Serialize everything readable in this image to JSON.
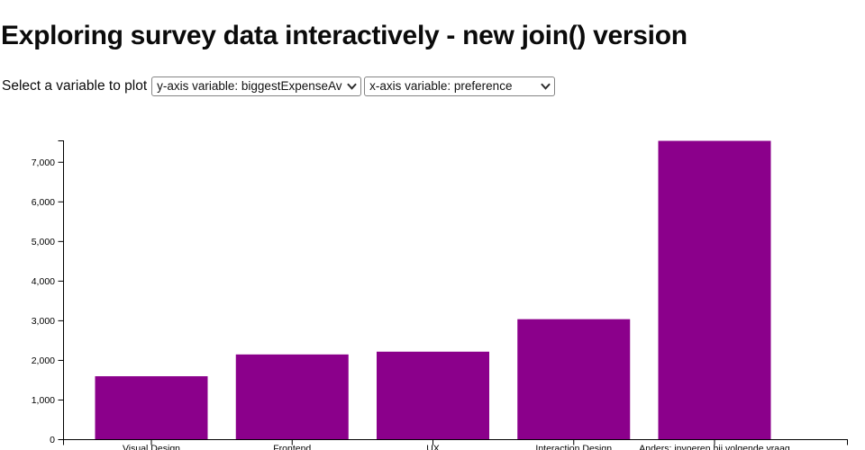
{
  "page": {
    "title": "Exploring survey data interactively - new join() version"
  },
  "controls": {
    "label": "Select a variable to plot",
    "y_select": {
      "selected": "y-axis variable: biggestExpenseAvg"
    },
    "x_select": {
      "selected": "x-axis variable: preference"
    }
  },
  "chart_data": {
    "type": "bar",
    "categories": [
      "Visual Design",
      "Frontend",
      "UX",
      "Interaction Design",
      "Anders: invoeren bij volgende vraag"
    ],
    "values": [
      1600,
      2150,
      2220,
      3040,
      7540
    ],
    "title": "",
    "xlabel": "",
    "ylabel": "",
    "ylim": [
      0,
      7540
    ],
    "y_ticks": [
      0,
      1000,
      2000,
      3000,
      4000,
      5000,
      6000,
      7000
    ],
    "bar_color": "#8B008B",
    "axis_color": "#000000",
    "grid": false,
    "legend": "none"
  }
}
